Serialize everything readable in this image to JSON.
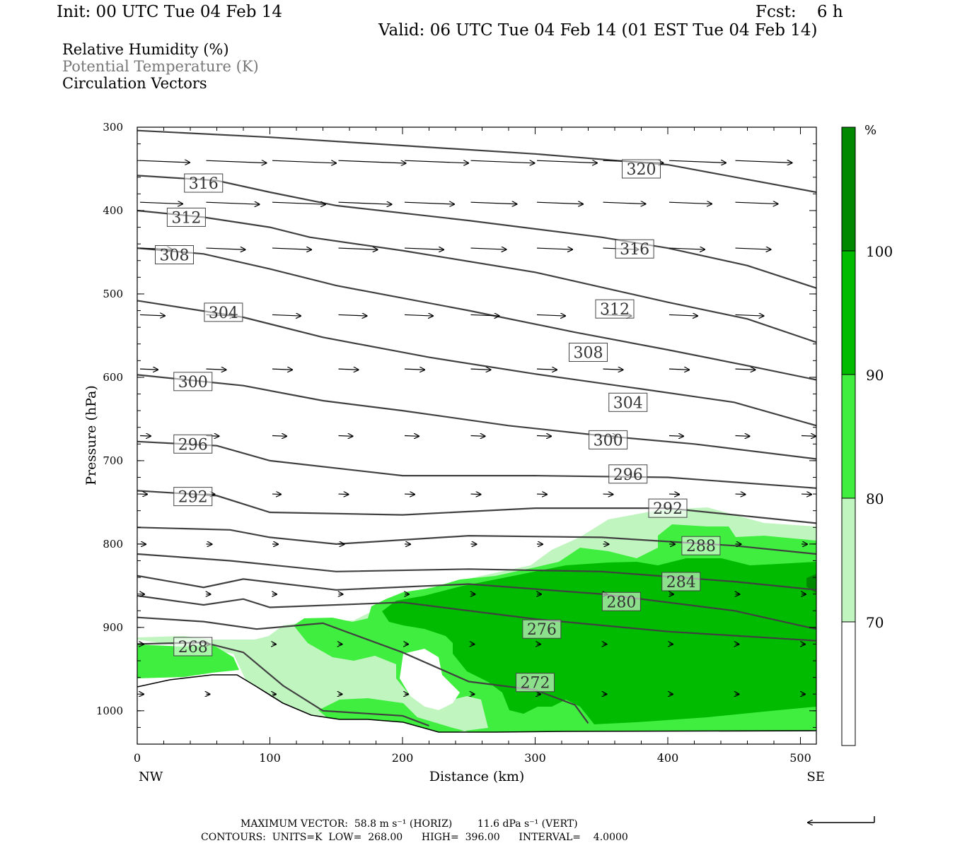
{
  "header": {
    "init": "Init: 00 UTC Tue 04 Feb 14",
    "fcst": "Fcst:    6 h",
    "valid": "Valid: 06 UTC Tue 04 Feb 14 (01 EST Tue 04 Feb 14)"
  },
  "fields": {
    "rh": "Relative Humidity (%)",
    "theta": "Potential Temperature (K)",
    "vectors": "Circulation Vectors"
  },
  "footer": {
    "max_vector": "MAXIMUM VECTOR:  58.8 m s⁻¹ (HORIZ)        11.6 dPa s⁻¹ (VERT)",
    "contours": "CONTOURS:  UNITS=K  LOW=  268.00      HIGH=  396.00      INTERVAL=    4.0000"
  },
  "colors": {
    "rh70": "#c0f5c0",
    "rh80": "#40ee40",
    "rh90": "#00bb00",
    "rh100": "#008800",
    "contour": "#404040"
  },
  "chart_data": {
    "type": "cross-section",
    "xlabel": "Distance (km)",
    "ylabel": "Pressure (hPa)",
    "x_ticks": [
      0,
      100,
      200,
      300,
      400,
      500
    ],
    "x_end_labels": {
      "left": "NW",
      "right": "SE"
    },
    "y_ticks": [
      300,
      400,
      500,
      600,
      700,
      800,
      900,
      1000
    ],
    "xlim": [
      0,
      512
    ],
    "ylim": [
      1040,
      300
    ],
    "colorbar": {
      "unit": "%",
      "levels": [
        70,
        80,
        90,
        100
      ]
    },
    "theta_contours": [
      {
        "value": 320,
        "label_at": [
          380,
          350
        ],
        "pts": [
          [
            0,
            304
          ],
          [
            100,
            312
          ],
          [
            200,
            322
          ],
          [
            300,
            332
          ],
          [
            400,
            345
          ],
          [
            512,
            378
          ]
        ]
      },
      {
        "value": 316,
        "label_at": [
          50,
          367
        ],
        "pts": [
          [
            0,
            358
          ],
          [
            60,
            364
          ],
          [
            100,
            378
          ],
          [
            150,
            394
          ],
          [
            250,
            412
          ],
          [
            350,
            432
          ],
          [
            400,
            445
          ],
          [
            460,
            466
          ],
          [
            512,
            493
          ]
        ]
      },
      {
        "value": 316,
        "label_at": [
          375,
          446
        ],
        "pts": []
      },
      {
        "value": 312,
        "label_at": [
          37,
          408
        ],
        "pts": [
          [
            0,
            400
          ],
          [
            50,
            408
          ],
          [
            100,
            420
          ],
          [
            130,
            432
          ],
          [
            200,
            448
          ],
          [
            300,
            474
          ],
          [
            400,
            510
          ],
          [
            460,
            530
          ],
          [
            512,
            558
          ]
        ]
      },
      {
        "value": 312,
        "label_at": [
          360,
          518
        ],
        "pts": []
      },
      {
        "value": 308,
        "label_at": [
          28,
          453
        ],
        "pts": [
          [
            0,
            445
          ],
          [
            50,
            452
          ],
          [
            100,
            470
          ],
          [
            150,
            490
          ],
          [
            250,
            520
          ],
          [
            330,
            546
          ],
          [
            400,
            567
          ],
          [
            460,
            586
          ],
          [
            512,
            603
          ]
        ]
      },
      {
        "value": 308,
        "label_at": [
          340,
          570
        ],
        "pts": []
      },
      {
        "value": 304,
        "label_at": [
          65,
          522
        ],
        "pts": [
          [
            0,
            508
          ],
          [
            80,
            528
          ],
          [
            140,
            552
          ],
          [
            220,
            576
          ],
          [
            300,
            596
          ],
          [
            380,
            614
          ],
          [
            450,
            630
          ],
          [
            512,
            658
          ]
        ]
      },
      {
        "value": 304,
        "label_at": [
          370,
          630
        ],
        "pts": []
      },
      {
        "value": 300,
        "label_at": [
          42,
          605
        ],
        "pts": [
          [
            0,
            597
          ],
          [
            80,
            610
          ],
          [
            140,
            628
          ],
          [
            200,
            640
          ],
          [
            280,
            658
          ],
          [
            350,
            670
          ],
          [
            420,
            680
          ],
          [
            512,
            698
          ]
        ]
      },
      {
        "value": 300,
        "label_at": [
          355,
          675
        ],
        "pts": []
      },
      {
        "value": 296,
        "label_at": [
          42,
          680
        ],
        "pts": [
          [
            0,
            677
          ],
          [
            60,
            682
          ],
          [
            100,
            700
          ],
          [
            200,
            718
          ],
          [
            300,
            718
          ],
          [
            400,
            720
          ],
          [
            512,
            733
          ]
        ]
      },
      {
        "value": 296,
        "label_at": [
          370,
          716
        ],
        "pts": []
      },
      {
        "value": 292,
        "label_at": [
          42,
          743
        ],
        "pts": [
          [
            0,
            736
          ],
          [
            60,
            742
          ],
          [
            100,
            762
          ],
          [
            200,
            765
          ],
          [
            300,
            757
          ],
          [
            400,
            757
          ],
          [
            512,
            775
          ]
        ]
      },
      {
        "value": 292,
        "label_at": [
          400,
          757
        ],
        "pts": []
      },
      {
        "value": 288,
        "label_at": [
          425,
          802
        ],
        "pts": [
          [
            0,
            780
          ],
          [
            70,
            783
          ],
          [
            100,
            792
          ],
          [
            150,
            800
          ],
          [
            250,
            790
          ],
          [
            350,
            792
          ],
          [
            450,
            802
          ],
          [
            512,
            812
          ]
        ]
      },
      {
        "value": 284,
        "label_at": [
          410,
          845
        ],
        "pts": [
          [
            0,
            812
          ],
          [
            70,
            820
          ],
          [
            150,
            833
          ],
          [
            250,
            830
          ],
          [
            350,
            833
          ],
          [
            450,
            845
          ],
          [
            512,
            855
          ]
        ]
      },
      {
        "value": 280,
        "label_at": [
          365,
          869
        ],
        "pts": [
          [
            0,
            838
          ],
          [
            50,
            852
          ],
          [
            80,
            842
          ],
          [
            150,
            855
          ],
          [
            250,
            848
          ],
          [
            350,
            860
          ],
          [
            450,
            880
          ],
          [
            512,
            902
          ]
        ]
      },
      {
        "value": 276,
        "label_at": [
          305,
          902
        ],
        "pts": [
          [
            0,
            862
          ],
          [
            50,
            873
          ],
          [
            80,
            866
          ],
          [
            100,
            876
          ],
          [
            200,
            870
          ],
          [
            300,
            890
          ],
          [
            400,
            905
          ],
          [
            512,
            916
          ]
        ]
      },
      {
        "value": 272,
        "label_at": [
          300,
          966
        ],
        "pts": [
          [
            0,
            888
          ],
          [
            50,
            893
          ],
          [
            90,
            902
          ],
          [
            140,
            895
          ],
          [
            200,
            930
          ],
          [
            250,
            965
          ],
          [
            300,
            975
          ],
          [
            330,
            993
          ],
          [
            340,
            1015
          ]
        ]
      },
      {
        "value": 268,
        "label_at": [
          42,
          923
        ],
        "pts": [
          [
            0,
            920
          ],
          [
            50,
            918
          ],
          [
            80,
            930
          ],
          [
            110,
            970
          ],
          [
            140,
            1000
          ],
          [
            200,
            1006
          ],
          [
            220,
            1018
          ]
        ]
      }
    ],
    "wind_vector_max": {
      "horiz_ms": 58.8,
      "vert_dpa_s": 11.6
    }
  }
}
